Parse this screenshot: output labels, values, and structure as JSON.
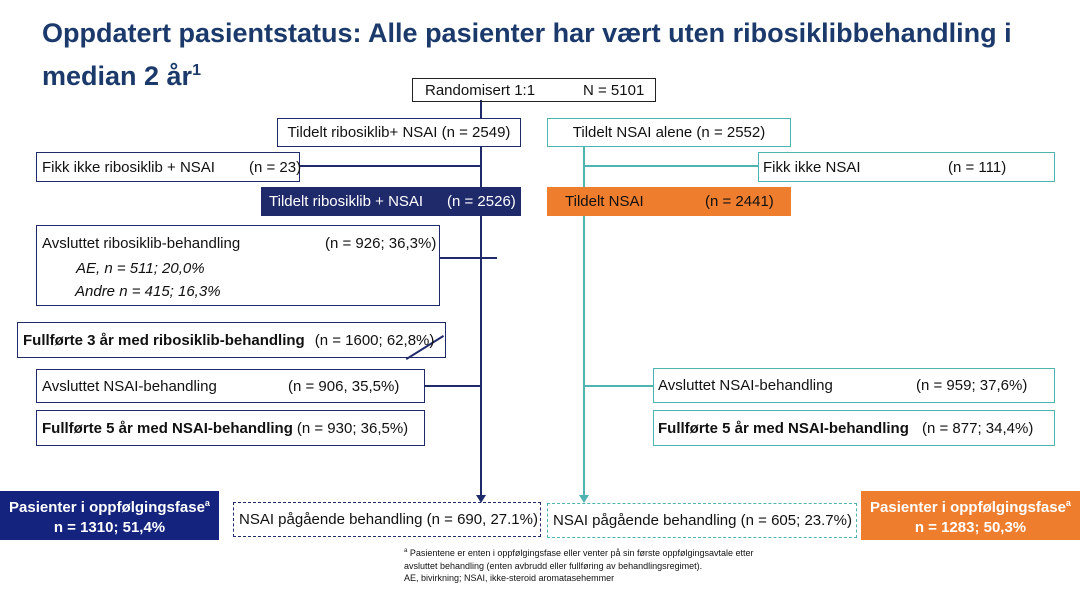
{
  "title": {
    "text": "Oppdatert pasientstatus: Alle pasienter har vært uten ribosiklibbehandling i median 2 år",
    "sup": "1"
  },
  "randomized": {
    "label": "Randomisert 1:1",
    "n": "N = 5101"
  },
  "left_arm": {
    "assigned": "Tildelt ribosiklib+ NSAI (n = 2549)",
    "not_received": {
      "label": "Fikk ikke ribosiklib + NSAI",
      "n": "(n = 23)"
    },
    "assigned2": {
      "label": "Tildelt ribosiklib + NSAI",
      "n": "(n = 2526)"
    },
    "discontinued_ribo": {
      "label": "Avsluttet ribosiklib-behandling",
      "n": "(n = 926; 36,3%)",
      "ae": "AE, n = 511; 20,0%",
      "other": "Andre n = 415; 16,3%"
    },
    "completed_ribo": {
      "label": "Fullførte 3 år med ribosiklib-behandling",
      "n": "(n = 1600; 62,8%)"
    },
    "discontinued_nsai": {
      "label": "Avsluttet NSAI-behandling",
      "n": "(n = 906, 35,5%)"
    },
    "completed_nsai": {
      "label": "Fullførte 5 år med NSAI-behandling",
      "n": "(n = 930; 36,5%)"
    },
    "followup": {
      "label": "Pasienter i oppfølgingsfase",
      "sup": "a",
      "n": "n = 1310; 51,4%"
    },
    "ongoing": "NSAI pågående behandling (n = 690, 27.1%)"
  },
  "right_arm": {
    "assigned": "Tildelt NSAI alene  (n = 2552)",
    "not_received": {
      "label": "Fikk ikke NSAI",
      "n": "(n = 111)"
    },
    "assigned2": {
      "label": "Tildelt NSAI",
      "n": "(n = 2441)"
    },
    "discontinued_nsai": {
      "label": "Avsluttet NSAI-behandling",
      "n": "(n = 959; 37,6%)"
    },
    "completed_nsai": {
      "label": "Fullførte 5 år med NSAI-behandling",
      "n": "(n = 877; 34,4%)"
    },
    "followup": {
      "label": "Pasienter i oppfølgingsfase",
      "sup": "a",
      "n": "n = 1283; 50,3%"
    },
    "ongoing": "NSAI pågående behandling (n = 605; 23.7%)"
  },
  "footnote": {
    "line1": "Pasientene er enten i oppfølgingsfase eller venter på sin første oppfølgingsavtale etter",
    "line1_sup": "a",
    "line2": "avsluttet behandling (enten avbrudd eller fullføring av behandlingsregimet).",
    "line3": "AE, bivirkning; NSAI, ikke-steroid aromatasehemmer"
  },
  "colors": {
    "navy": "#1f2a6b",
    "teal": "#4fb3b0",
    "orange": "#ef7d2e",
    "title": "#1b3a6b",
    "followup_navy": "#14237d"
  }
}
